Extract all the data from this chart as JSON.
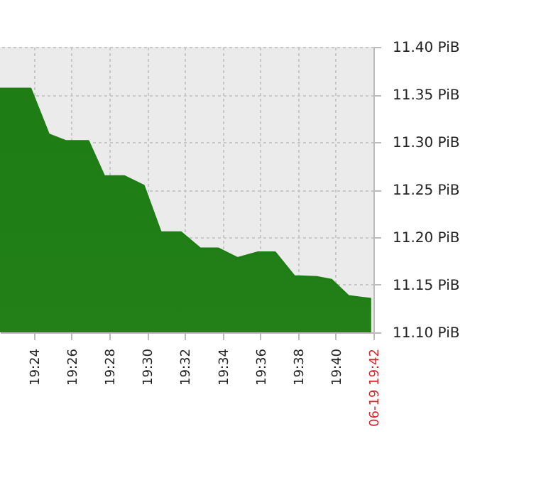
{
  "chart_data": {
    "type": "area",
    "x": [
      19.37,
      19.397,
      19.413,
      19.428,
      19.448,
      19.462,
      19.48,
      19.497,
      19.512,
      19.53,
      19.547,
      19.563,
      19.58,
      19.598,
      19.613,
      19.63,
      19.65,
      19.663,
      19.678,
      19.698
    ],
    "series": [
      {
        "color": "#1e7d14",
        "values": [
          11.356,
          11.356,
          11.308,
          11.301,
          11.301,
          11.264,
          11.264,
          11.254,
          11.205,
          11.205,
          11.188,
          11.188,
          11.178,
          11.184,
          11.184,
          11.159,
          11.158,
          11.155,
          11.138,
          11.135
        ]
      }
    ],
    "xlim": [
      19.37,
      19.7
    ],
    "xticks": [
      {
        "value": 19.4,
        "label": "19:24"
      },
      {
        "value": 19.4333,
        "label": "19:26"
      },
      {
        "value": 19.4667,
        "label": "19:28"
      },
      {
        "value": 19.5,
        "label": "19:30"
      },
      {
        "value": 19.5333,
        "label": "19:32"
      },
      {
        "value": 19.5667,
        "label": "19:34"
      },
      {
        "value": 19.6,
        "label": "19:36"
      },
      {
        "value": 19.6333,
        "label": "19:38"
      },
      {
        "value": 19.6667,
        "label": "19:40"
      },
      {
        "value": 19.7,
        "label": "06-19 19:42"
      }
    ],
    "ylim": [
      11.1,
      11.4
    ],
    "yticks": [
      {
        "value": 11.1,
        "label": "11.10 PiB"
      },
      {
        "value": 11.15,
        "label": "11.15 PiB"
      },
      {
        "value": 11.2,
        "label": "11.20 PiB"
      },
      {
        "value": 11.25,
        "label": "11.25 PiB"
      },
      {
        "value": 11.3,
        "label": "11.30 PiB"
      },
      {
        "value": 11.35,
        "label": "11.35 PiB"
      },
      {
        "value": 11.4,
        "label": "11.40 PiB"
      }
    ],
    "grid": true
  }
}
